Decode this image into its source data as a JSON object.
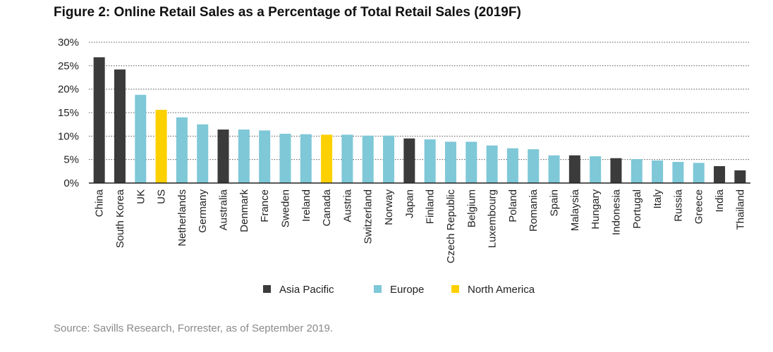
{
  "title": "Figure 2: Online Retail Sales as a Percentage of Total Retail Sales (2019F)",
  "source": "Source: Savills Research, Forrester, as of September 2019.",
  "colors": {
    "Asia Pacific": "#3b3b3b",
    "Europe": "#7ec8d8",
    "North America": "#fdd000",
    "grid": "#555555",
    "axis": "#222222"
  },
  "chart_data": {
    "type": "bar",
    "title": "Figure 2: Online Retail Sales as a Percentage of Total Retail Sales (2019F)",
    "xlabel": "",
    "ylabel": "",
    "ylim": [
      0,
      30
    ],
    "yticks": [
      0,
      5,
      10,
      15,
      20,
      25,
      30
    ],
    "ytick_labels": [
      "0%",
      "5%",
      "10%",
      "15%",
      "20%",
      "25%",
      "30%"
    ],
    "grid": true,
    "legend_position": "bottom-center",
    "legend": [
      "Asia Pacific",
      "Europe",
      "North America"
    ],
    "categories": [
      "China",
      "South Korea",
      "UK",
      "US",
      "Netherlands",
      "Germany",
      "Australia",
      "Denmark",
      "France",
      "Sweden",
      "Ireland",
      "Canada",
      "Austria",
      "Switzerland",
      "Norway",
      "Japan",
      "Finland",
      "Czech Republic",
      "Belgium",
      "Luxembourg",
      "Poland",
      "Romania",
      "Spain",
      "Malaysia",
      "Hungary",
      "Indonesia",
      "Portugal",
      "Italy",
      "Russia",
      "Greece",
      "India",
      "Thailand"
    ],
    "values": [
      26.8,
      24.2,
      18.8,
      15.6,
      14.0,
      12.5,
      11.4,
      11.4,
      11.2,
      10.5,
      10.4,
      10.3,
      10.3,
      10.1,
      10.1,
      9.5,
      9.3,
      8.8,
      8.8,
      8.0,
      7.4,
      7.2,
      5.9,
      5.9,
      5.7,
      5.3,
      5.1,
      4.8,
      4.5,
      4.3,
      3.6,
      2.7
    ],
    "regions": [
      "Asia Pacific",
      "Asia Pacific",
      "Europe",
      "North America",
      "Europe",
      "Europe",
      "Asia Pacific",
      "Europe",
      "Europe",
      "Europe",
      "Europe",
      "North America",
      "Europe",
      "Europe",
      "Europe",
      "Asia Pacific",
      "Europe",
      "Europe",
      "Europe",
      "Europe",
      "Europe",
      "Europe",
      "Europe",
      "Asia Pacific",
      "Europe",
      "Asia Pacific",
      "Europe",
      "Europe",
      "Europe",
      "Europe",
      "Asia Pacific",
      "Asia Pacific"
    ]
  }
}
